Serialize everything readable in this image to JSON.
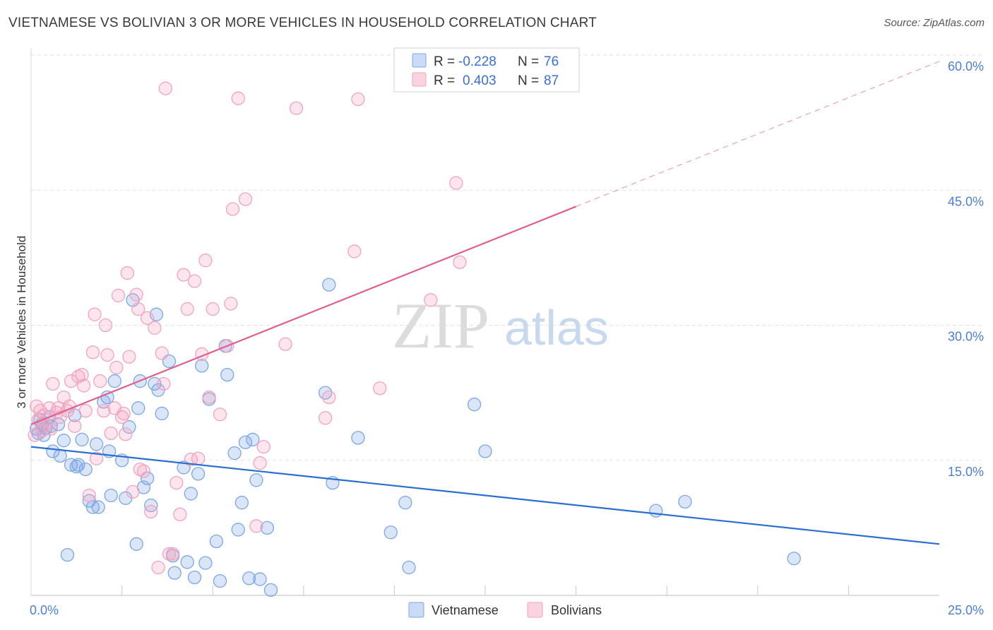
{
  "header": {
    "title": "VIETNAMESE VS BOLIVIAN 3 OR MORE VEHICLES IN HOUSEHOLD CORRELATION CHART",
    "source": "Source: ZipAtlas.com"
  },
  "watermark": {
    "zip": "ZIP",
    "atlas": "atlas"
  },
  "legend": {
    "rows": [
      {
        "r_label": "R =",
        "r_value": "-0.228",
        "n_label": "N =",
        "n_value": "76",
        "color": "#7ba7e6"
      },
      {
        "r_label": "R =",
        "r_value": "0.403",
        "n_label": "N =",
        "n_value": "87",
        "color": "#f3a3bd"
      }
    ]
  },
  "chart_data": {
    "type": "scatter",
    "title": "VIETNAMESE VS BOLIVIAN 3 OR MORE VEHICLES IN HOUSEHOLD CORRELATION CHART",
    "ylabel": "3 or more Vehicles in Household",
    "xlabel": "",
    "xlim": [
      0,
      25
    ],
    "ylim": [
      0,
      60
    ],
    "x_tick_labels": [
      "0.0%",
      "25.0%"
    ],
    "y_tick_labels": [
      "15.0%",
      "30.0%",
      "45.0%",
      "60.0%"
    ],
    "y_ticks": [
      15,
      30,
      45,
      60
    ],
    "grid": true,
    "legend_position": "top-center",
    "series": [
      {
        "name": "Vietnamese",
        "color": "#7ba7e6",
        "line_color": "#2a6fd1",
        "r": -0.228,
        "n": 76,
        "trend": {
          "x": [
            0,
            25
          ],
          "y": [
            16.5,
            5.7
          ],
          "dashed_from": null
        },
        "points": [
          [
            0.15,
            18.5
          ],
          [
            0.2,
            18.0
          ],
          [
            0.25,
            19.5
          ],
          [
            0.3,
            19.0
          ],
          [
            0.35,
            17.8
          ],
          [
            0.4,
            18.6
          ],
          [
            0.5,
            19.8
          ],
          [
            0.55,
            18.8
          ],
          [
            0.6,
            16.0
          ],
          [
            0.75,
            19.0
          ],
          [
            0.8,
            15.5
          ],
          [
            0.9,
            17.2
          ],
          [
            1.0,
            4.5
          ],
          [
            1.1,
            14.5
          ],
          [
            1.2,
            20.0
          ],
          [
            1.25,
            14.3
          ],
          [
            1.3,
            14.5
          ],
          [
            1.4,
            17.3
          ],
          [
            1.5,
            14.0
          ],
          [
            1.6,
            10.5
          ],
          [
            1.7,
            9.8
          ],
          [
            1.8,
            16.8
          ],
          [
            1.85,
            9.8
          ],
          [
            2.0,
            21.5
          ],
          [
            2.1,
            22.0
          ],
          [
            2.15,
            16.0
          ],
          [
            2.2,
            11.1
          ],
          [
            2.3,
            23.8
          ],
          [
            2.5,
            15.0
          ],
          [
            2.6,
            10.8
          ],
          [
            2.7,
            18.7
          ],
          [
            2.8,
            32.8
          ],
          [
            2.9,
            5.7
          ],
          [
            2.95,
            20.8
          ],
          [
            3.0,
            23.8
          ],
          [
            3.1,
            12.0
          ],
          [
            3.2,
            13.0
          ],
          [
            3.3,
            10.0
          ],
          [
            3.4,
            23.5
          ],
          [
            3.45,
            31.2
          ],
          [
            3.5,
            22.8
          ],
          [
            3.6,
            20.2
          ],
          [
            3.8,
            26.0
          ],
          [
            3.9,
            4.4
          ],
          [
            3.95,
            2.5
          ],
          [
            4.2,
            14.2
          ],
          [
            4.3,
            3.7
          ],
          [
            4.4,
            11.3
          ],
          [
            4.5,
            2.0
          ],
          [
            4.6,
            13.5
          ],
          [
            4.7,
            25.5
          ],
          [
            4.8,
            3.6
          ],
          [
            4.9,
            21.8
          ],
          [
            5.1,
            6.0
          ],
          [
            5.2,
            1.6
          ],
          [
            5.35,
            27.7
          ],
          [
            5.4,
            24.5
          ],
          [
            5.6,
            15.8
          ],
          [
            5.7,
            7.3
          ],
          [
            5.8,
            10.3
          ],
          [
            5.9,
            17.0
          ],
          [
            6.0,
            1.9
          ],
          [
            6.1,
            17.3
          ],
          [
            6.2,
            12.8
          ],
          [
            6.3,
            1.8
          ],
          [
            6.5,
            7.5
          ],
          [
            6.6,
            0.6
          ],
          [
            8.1,
            22.5
          ],
          [
            8.2,
            34.5
          ],
          [
            8.3,
            12.5
          ],
          [
            9.0,
            17.5
          ],
          [
            9.9,
            7.0
          ],
          [
            10.3,
            10.3
          ],
          [
            10.4,
            3.1
          ],
          [
            12.2,
            21.2
          ],
          [
            12.5,
            16.0
          ],
          [
            17.2,
            9.4
          ],
          [
            18.0,
            10.4
          ],
          [
            21.0,
            4.1
          ]
        ]
      },
      {
        "name": "Bolivians",
        "color": "#f3a3bd",
        "line_color": "#e0608c",
        "r": 0.403,
        "n": 87,
        "trend": {
          "x": [
            0,
            25
          ],
          "y": [
            19.0,
            59.3
          ],
          "dashed_from": 15
        },
        "points": [
          [
            0.1,
            17.8
          ],
          [
            0.15,
            21.0
          ],
          [
            0.2,
            19.5
          ],
          [
            0.25,
            20.5
          ],
          [
            0.3,
            18.3
          ],
          [
            0.35,
            20.0
          ],
          [
            0.4,
            19.0
          ],
          [
            0.5,
            20.8
          ],
          [
            0.55,
            18.5
          ],
          [
            0.6,
            23.5
          ],
          [
            0.7,
            20.3
          ],
          [
            0.75,
            20.8
          ],
          [
            0.8,
            19.8
          ],
          [
            0.9,
            22.0
          ],
          [
            1.0,
            20.5
          ],
          [
            1.05,
            21.0
          ],
          [
            1.1,
            23.8
          ],
          [
            1.2,
            18.8
          ],
          [
            1.3,
            24.3
          ],
          [
            1.4,
            24.5
          ],
          [
            1.45,
            23.3
          ],
          [
            1.5,
            20.5
          ],
          [
            1.6,
            11.1
          ],
          [
            1.7,
            27.0
          ],
          [
            1.75,
            31.2
          ],
          [
            1.8,
            15.2
          ],
          [
            1.9,
            23.8
          ],
          [
            2.0,
            20.5
          ],
          [
            2.05,
            30.0
          ],
          [
            2.1,
            26.7
          ],
          [
            2.2,
            18.0
          ],
          [
            2.3,
            20.8
          ],
          [
            2.35,
            25.3
          ],
          [
            2.4,
            33.3
          ],
          [
            2.5,
            19.8
          ],
          [
            2.55,
            20.2
          ],
          [
            2.6,
            17.9
          ],
          [
            2.65,
            35.8
          ],
          [
            2.7,
            26.5
          ],
          [
            2.8,
            11.5
          ],
          [
            2.9,
            33.4
          ],
          [
            2.95,
            31.8
          ],
          [
            3.0,
            14.0
          ],
          [
            3.1,
            13.8
          ],
          [
            3.2,
            30.8
          ],
          [
            3.3,
            9.3
          ],
          [
            3.4,
            29.7
          ],
          [
            3.5,
            3.1
          ],
          [
            3.6,
            26.9
          ],
          [
            3.65,
            23.5
          ],
          [
            3.7,
            56.3
          ],
          [
            3.8,
            4.6
          ],
          [
            3.9,
            4.6
          ],
          [
            4.0,
            12.5
          ],
          [
            4.1,
            9.0
          ],
          [
            4.2,
            35.6
          ],
          [
            4.3,
            31.8
          ],
          [
            4.4,
            15.1
          ],
          [
            4.5,
            34.9
          ],
          [
            4.6,
            15.2
          ],
          [
            4.7,
            26.8
          ],
          [
            4.8,
            37.2
          ],
          [
            4.9,
            22.0
          ],
          [
            5.0,
            31.8
          ],
          [
            5.2,
            20.1
          ],
          [
            5.4,
            27.7
          ],
          [
            5.5,
            32.4
          ],
          [
            5.55,
            42.9
          ],
          [
            5.7,
            55.2
          ],
          [
            5.9,
            44.0
          ],
          [
            6.2,
            7.7
          ],
          [
            6.3,
            14.7
          ],
          [
            6.4,
            16.5
          ],
          [
            7.0,
            27.9
          ],
          [
            7.3,
            54.1
          ],
          [
            8.1,
            19.7
          ],
          [
            8.2,
            22.0
          ],
          [
            8.9,
            38.2
          ],
          [
            9.0,
            55.1
          ],
          [
            9.6,
            23.0
          ],
          [
            11.0,
            32.8
          ],
          [
            11.7,
            45.8
          ],
          [
            11.8,
            37.0
          ]
        ]
      }
    ]
  },
  "bottom_legend": [
    {
      "label": "Vietnamese",
      "color": "#7ba7e6"
    },
    {
      "label": "Bolivians",
      "color": "#f3a3bd"
    }
  ]
}
